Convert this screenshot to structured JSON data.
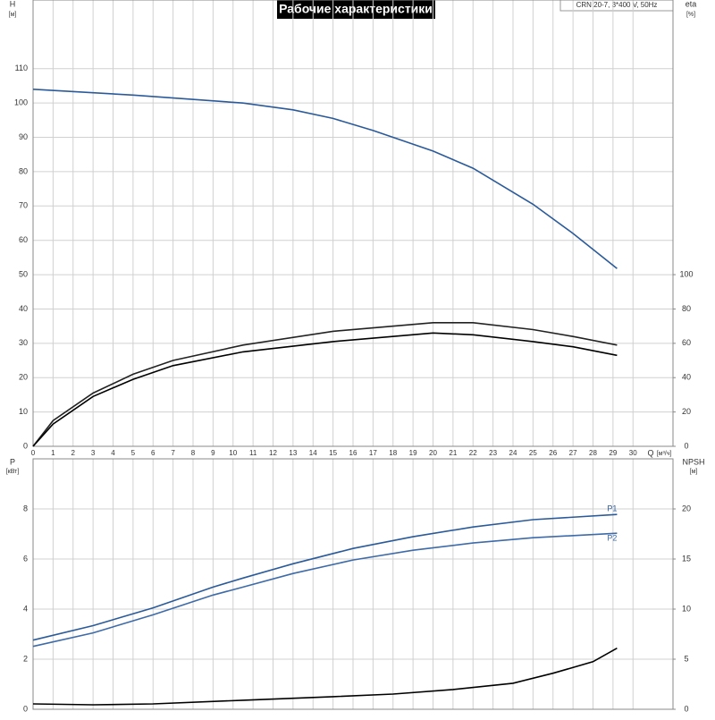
{
  "chart_data": [
    {
      "type": "line",
      "title": "Рабочие характеристики",
      "subtitle": "CRN 20-7, 3*400 V, 50Hz",
      "y_label": "H",
      "y_unit": "[м]",
      "y2_label": "eta",
      "y2_unit": "[%]",
      "x_label": "Q",
      "x_unit": "[м³/ч]",
      "xlim": [
        0,
        32
      ],
      "xticks": [
        0,
        1,
        2,
        3,
        4,
        5,
        6,
        7,
        8,
        9,
        10,
        11,
        12,
        13,
        14,
        15,
        16,
        17,
        18,
        19,
        20,
        21,
        22,
        23,
        24,
        25,
        26,
        27,
        28,
        29,
        30
      ],
      "ylim": [
        0,
        130
      ],
      "yticks": [
        0,
        10,
        20,
        30,
        40,
        50,
        60,
        70,
        80,
        90,
        100,
        110
      ],
      "y2lim": [
        0,
        260
      ],
      "y2ticks": [
        0,
        20,
        40,
        60,
        80,
        100
      ],
      "grid": true,
      "series": [
        {
          "color": "#2a5a9a",
          "x": [
            0,
            5,
            10.5,
            13,
            15,
            17,
            20,
            22,
            25,
            27,
            29.2
          ],
          "values": [
            104,
            102.3,
            100,
            98,
            95.5,
            92,
            86,
            81,
            70.5,
            62,
            51.8
          ]
        },
        {
          "color": "#222222",
          "axis": "y2",
          "x": [
            0,
            1,
            3,
            5,
            7,
            10.5,
            15,
            20,
            22,
            25,
            27,
            29.2
          ],
          "values": [
            0,
            15,
            31,
            42,
            50,
            59,
            67,
            72,
            72,
            68,
            64,
            59
          ]
        },
        {
          "color": "#000000",
          "axis": "y2",
          "x": [
            0,
            1,
            3,
            5,
            7,
            10.5,
            15,
            20,
            22,
            25,
            27,
            29.2
          ],
          "values": [
            0,
            13,
            29,
            39,
            47,
            55,
            61,
            66,
            65,
            61,
            58,
            53
          ]
        }
      ]
    },
    {
      "type": "line",
      "y_label": "P",
      "y_unit": "[кВт]",
      "y2_label": "NPSH",
      "y2_unit": "[м]",
      "xlim": [
        0,
        32
      ],
      "ylim": [
        0,
        10
      ],
      "yticks": [
        0,
        2,
        4,
        6,
        8
      ],
      "y2lim": [
        0,
        25
      ],
      "y2ticks": [
        0,
        5,
        10,
        15,
        20
      ],
      "grid": true,
      "series": [
        {
          "name": "P1",
          "color": "#2a5a9a",
          "x": [
            0,
            3,
            6,
            9,
            10.5,
            13,
            16,
            19,
            22,
            25,
            29.2
          ],
          "values": [
            2.76,
            3.34,
            4.05,
            4.88,
            5.24,
            5.81,
            6.42,
            6.89,
            7.28,
            7.57,
            7.78
          ]
        },
        {
          "name": "P2",
          "color": "#3d6aa8",
          "x": [
            0,
            3,
            6,
            9,
            10.5,
            13,
            16,
            19,
            22,
            25,
            29.2
          ],
          "values": [
            2.51,
            3.05,
            3.77,
            4.56,
            4.88,
            5.42,
            5.96,
            6.35,
            6.64,
            6.85,
            7.03
          ]
        },
        {
          "color": "#000000",
          "axis": "y2",
          "x": [
            0,
            3,
            6,
            10.5,
            15,
            18,
            21,
            24,
            26,
            28,
            29.2
          ],
          "values": [
            0.54,
            0.45,
            0.54,
            0.9,
            1.26,
            1.52,
            1.97,
            2.6,
            3.6,
            4.75,
            6.1
          ]
        }
      ]
    }
  ]
}
